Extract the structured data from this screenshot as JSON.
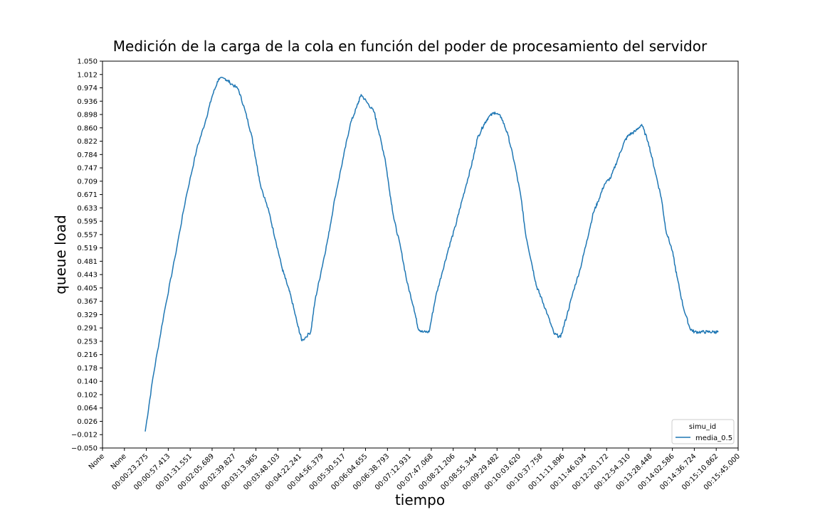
{
  "chart_data": {
    "type": "line",
    "title": "Medición de la carga de la cola en función del poder de procesamiento del servidor",
    "xlabel": "tiempo",
    "ylabel": "queue load",
    "grid": false,
    "legend": {
      "title": "simu_id",
      "placement": "lower-right",
      "entries": [
        "media_0.5"
      ]
    },
    "series_color": "#1f77b4",
    "x_tick_labels": [
      "None",
      "None",
      "00:00:23.275",
      "00:00:57.413",
      "00:01:31.551",
      "00:02:05.689",
      "00:02:39.827",
      "00:03:13.965",
      "00:03:48.103",
      "00:04:22.241",
      "00:04:56.379",
      "00:05:30.517",
      "00:06:04.655",
      "00:06:38.793",
      "00:07:12.931",
      "00:07:47.068",
      "00:08:21.206",
      "00:08:55.344",
      "00:09:29.482",
      "00:10:03.620",
      "00:10:37.758",
      "00:11:11.896",
      "00:11:46.034",
      "00:12:20.172",
      "00:12:54.310",
      "00:13:28.448",
      "00:14:02.586",
      "00:14:36.724",
      "00:15:10.862",
      "00:15:45.000"
    ],
    "y_tick_labels": [
      "−0.050",
      "−0.012",
      "0.026",
      "0.064",
      "0.102",
      "0.140",
      "0.178",
      "0.216",
      "0.253",
      "0.291",
      "0.329",
      "0.367",
      "0.405",
      "0.443",
      "0.481",
      "0.519",
      "0.557",
      "0.595",
      "0.633",
      "0.671",
      "0.709",
      "0.747",
      "0.784",
      "0.822",
      "0.860",
      "0.898",
      "0.936",
      "0.974",
      "1.012",
      "1.050"
    ],
    "xlim": [
      -2,
      27
    ],
    "ylim": [
      -0.05,
      1.05
    ],
    "series": [
      {
        "name": "media_0.5",
        "x": [
          -0.05,
          0.3,
          0.8,
          1.3,
          1.8,
          2.3,
          2.7,
          3.0,
          3.3,
          3.6,
          3.8,
          4.2,
          4.5,
          4.8,
          5.0,
          5.2,
          5.6,
          5.9,
          6.2,
          6.4,
          6.6,
          6.9,
          7.1,
          7.5,
          7.7,
          8.0,
          8.3,
          8.6,
          9.0,
          9.3,
          9.6,
          9.8,
          10.1,
          10.4,
          10.6,
          10.9,
          11.1,
          11.3,
          11.6,
          11.9,
          12.2,
          12.4,
          12.6,
          12.9,
          13.2,
          13.5,
          13.8,
          14.1,
          14.3,
          14.6,
          14.9,
          15.1,
          15.4,
          15.6,
          15.9,
          16.2,
          16.5,
          16.8,
          17.1,
          17.3,
          17.6,
          17.8,
          18.0,
          18.3,
          18.6,
          18.9,
          19.2,
          19.5,
          19.8,
          20.1,
          20.4,
          20.6,
          20.9,
          21.2,
          21.5,
          21.8,
          22.0,
          22.3,
          22.6,
          22.9,
          23.2,
          23.5,
          23.7,
          24.0,
          24.2,
          24.5,
          24.8,
          25.0,
          25.3,
          25.6,
          25.9,
          26.1
        ],
        "y": [
          -0.003,
          0.15,
          0.33,
          0.49,
          0.66,
          0.8,
          0.88,
          0.95,
          1.0,
          1.0,
          0.99,
          0.97,
          0.91,
          0.84,
          0.77,
          0.7,
          0.62,
          0.54,
          0.46,
          0.42,
          0.38,
          0.3,
          0.255,
          0.28,
          0.37,
          0.46,
          0.55,
          0.66,
          0.78,
          0.87,
          0.92,
          0.955,
          0.93,
          0.905,
          0.85,
          0.77,
          0.68,
          0.6,
          0.52,
          0.42,
          0.35,
          0.29,
          0.28,
          0.28,
          0.38,
          0.45,
          0.52,
          0.58,
          0.63,
          0.7,
          0.77,
          0.83,
          0.87,
          0.89,
          0.905,
          0.89,
          0.84,
          0.76,
          0.66,
          0.56,
          0.47,
          0.41,
          0.38,
          0.33,
          0.275,
          0.265,
          0.33,
          0.4,
          0.46,
          0.54,
          0.62,
          0.65,
          0.7,
          0.72,
          0.77,
          0.82,
          0.84,
          0.85,
          0.87,
          0.82,
          0.74,
          0.66,
          0.57,
          0.51,
          0.44,
          0.35,
          0.29,
          0.28,
          0.28,
          0.28,
          0.28,
          0.28
        ]
      }
    ]
  }
}
